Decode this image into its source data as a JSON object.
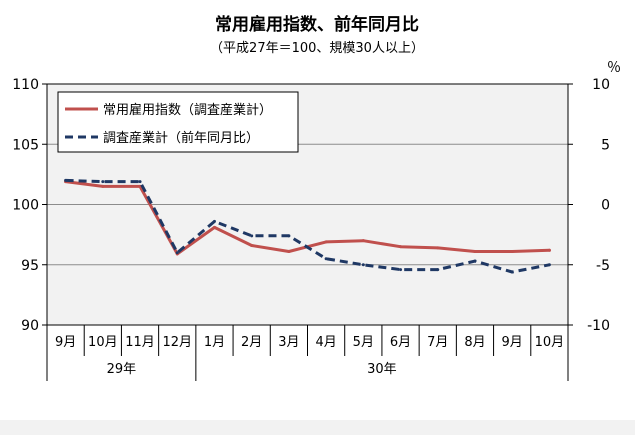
{
  "chart_data": {
    "type": "line",
    "title": "常用雇用指数、前年同月比",
    "subtitle": "（平成27年＝100、規模30人以上）",
    "categories": [
      "9月",
      "10月",
      "11月",
      "12月",
      "1月",
      "2月",
      "3月",
      "4月",
      "5月",
      "6月",
      "7月",
      "8月",
      "9月",
      "10月"
    ],
    "year_groups": [
      {
        "label": "29年",
        "span": 4
      },
      {
        "label": "30年",
        "span": 10
      }
    ],
    "y_left": {
      "ylim": [
        90,
        110
      ],
      "ticks": [
        90,
        95,
        100,
        105,
        110
      ],
      "tick_labels": [
        "90",
        "95",
        "100",
        "105",
        "110"
      ]
    },
    "y_right": {
      "ylim": [
        -10,
        10
      ],
      "ticks": [
        -10,
        -5,
        0,
        5,
        10
      ],
      "tick_labels": [
        "-10",
        "-5",
        "0",
        "5",
        "10"
      ],
      "unit": "％"
    },
    "series": [
      {
        "name": "常用雇用指数（調査産業計）",
        "axis": "left",
        "color": "#c0504d",
        "style": "solid",
        "values": [
          101.9,
          101.5,
          101.5,
          95.9,
          98.1,
          96.6,
          96.1,
          96.9,
          97.0,
          96.5,
          96.4,
          96.1,
          96.1,
          96.2
        ]
      },
      {
        "name": "調査産業計（前年同月比）",
        "axis": "right",
        "color": "#1f3864",
        "style": "dashed",
        "values": [
          2.0,
          1.9,
          1.9,
          -4.0,
          -1.4,
          -2.6,
          -2.6,
          -4.5,
          -5.0,
          -5.4,
          -5.4,
          -4.7,
          -5.6,
          -5.0
        ]
      }
    ],
    "grid": true,
    "legend_position": "top-left"
  }
}
